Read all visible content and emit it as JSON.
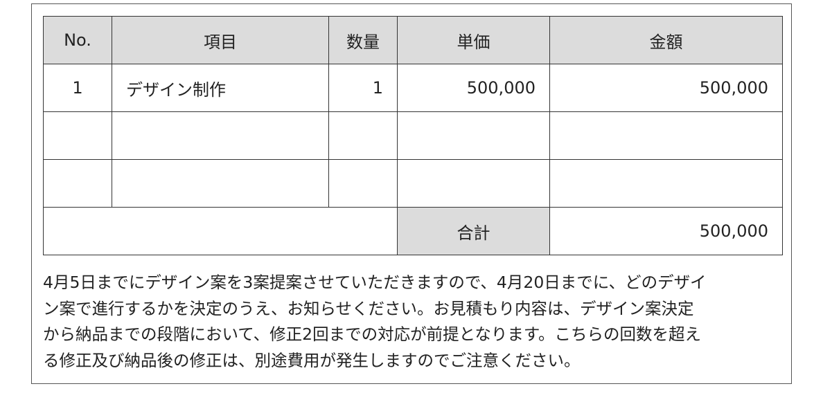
{
  "table": {
    "headers": [
      "No.",
      "項目",
      "数量",
      "単価",
      "金額"
    ],
    "rows": [
      [
        "1",
        "デザイン制作",
        "1",
        "500,000",
        "500,000"
      ],
      [
        "",
        "",
        "",
        "",
        ""
      ],
      [
        "",
        "",
        "",
        "",
        ""
      ]
    ],
    "total_label": "合計",
    "total_value": "500,000"
  },
  "note": {
    "lines": [
      "4月5日までにデザイン案を3案提案させていただきますので、4月20日までに、どのデザイ",
      "ン案で進行するかを決定のうえ、お知らせください。お見積もり内容は、デザイン案決定",
      "から納品までの段階において、修正2回までの対応が前提となります。こちらの回数を超え",
      "る修正及び納品後の修正は、別途費用が発生しますのでご注意ください。"
    ]
  },
  "colors": {
    "header_bg": "#dcdcdc",
    "border": "#333333"
  }
}
